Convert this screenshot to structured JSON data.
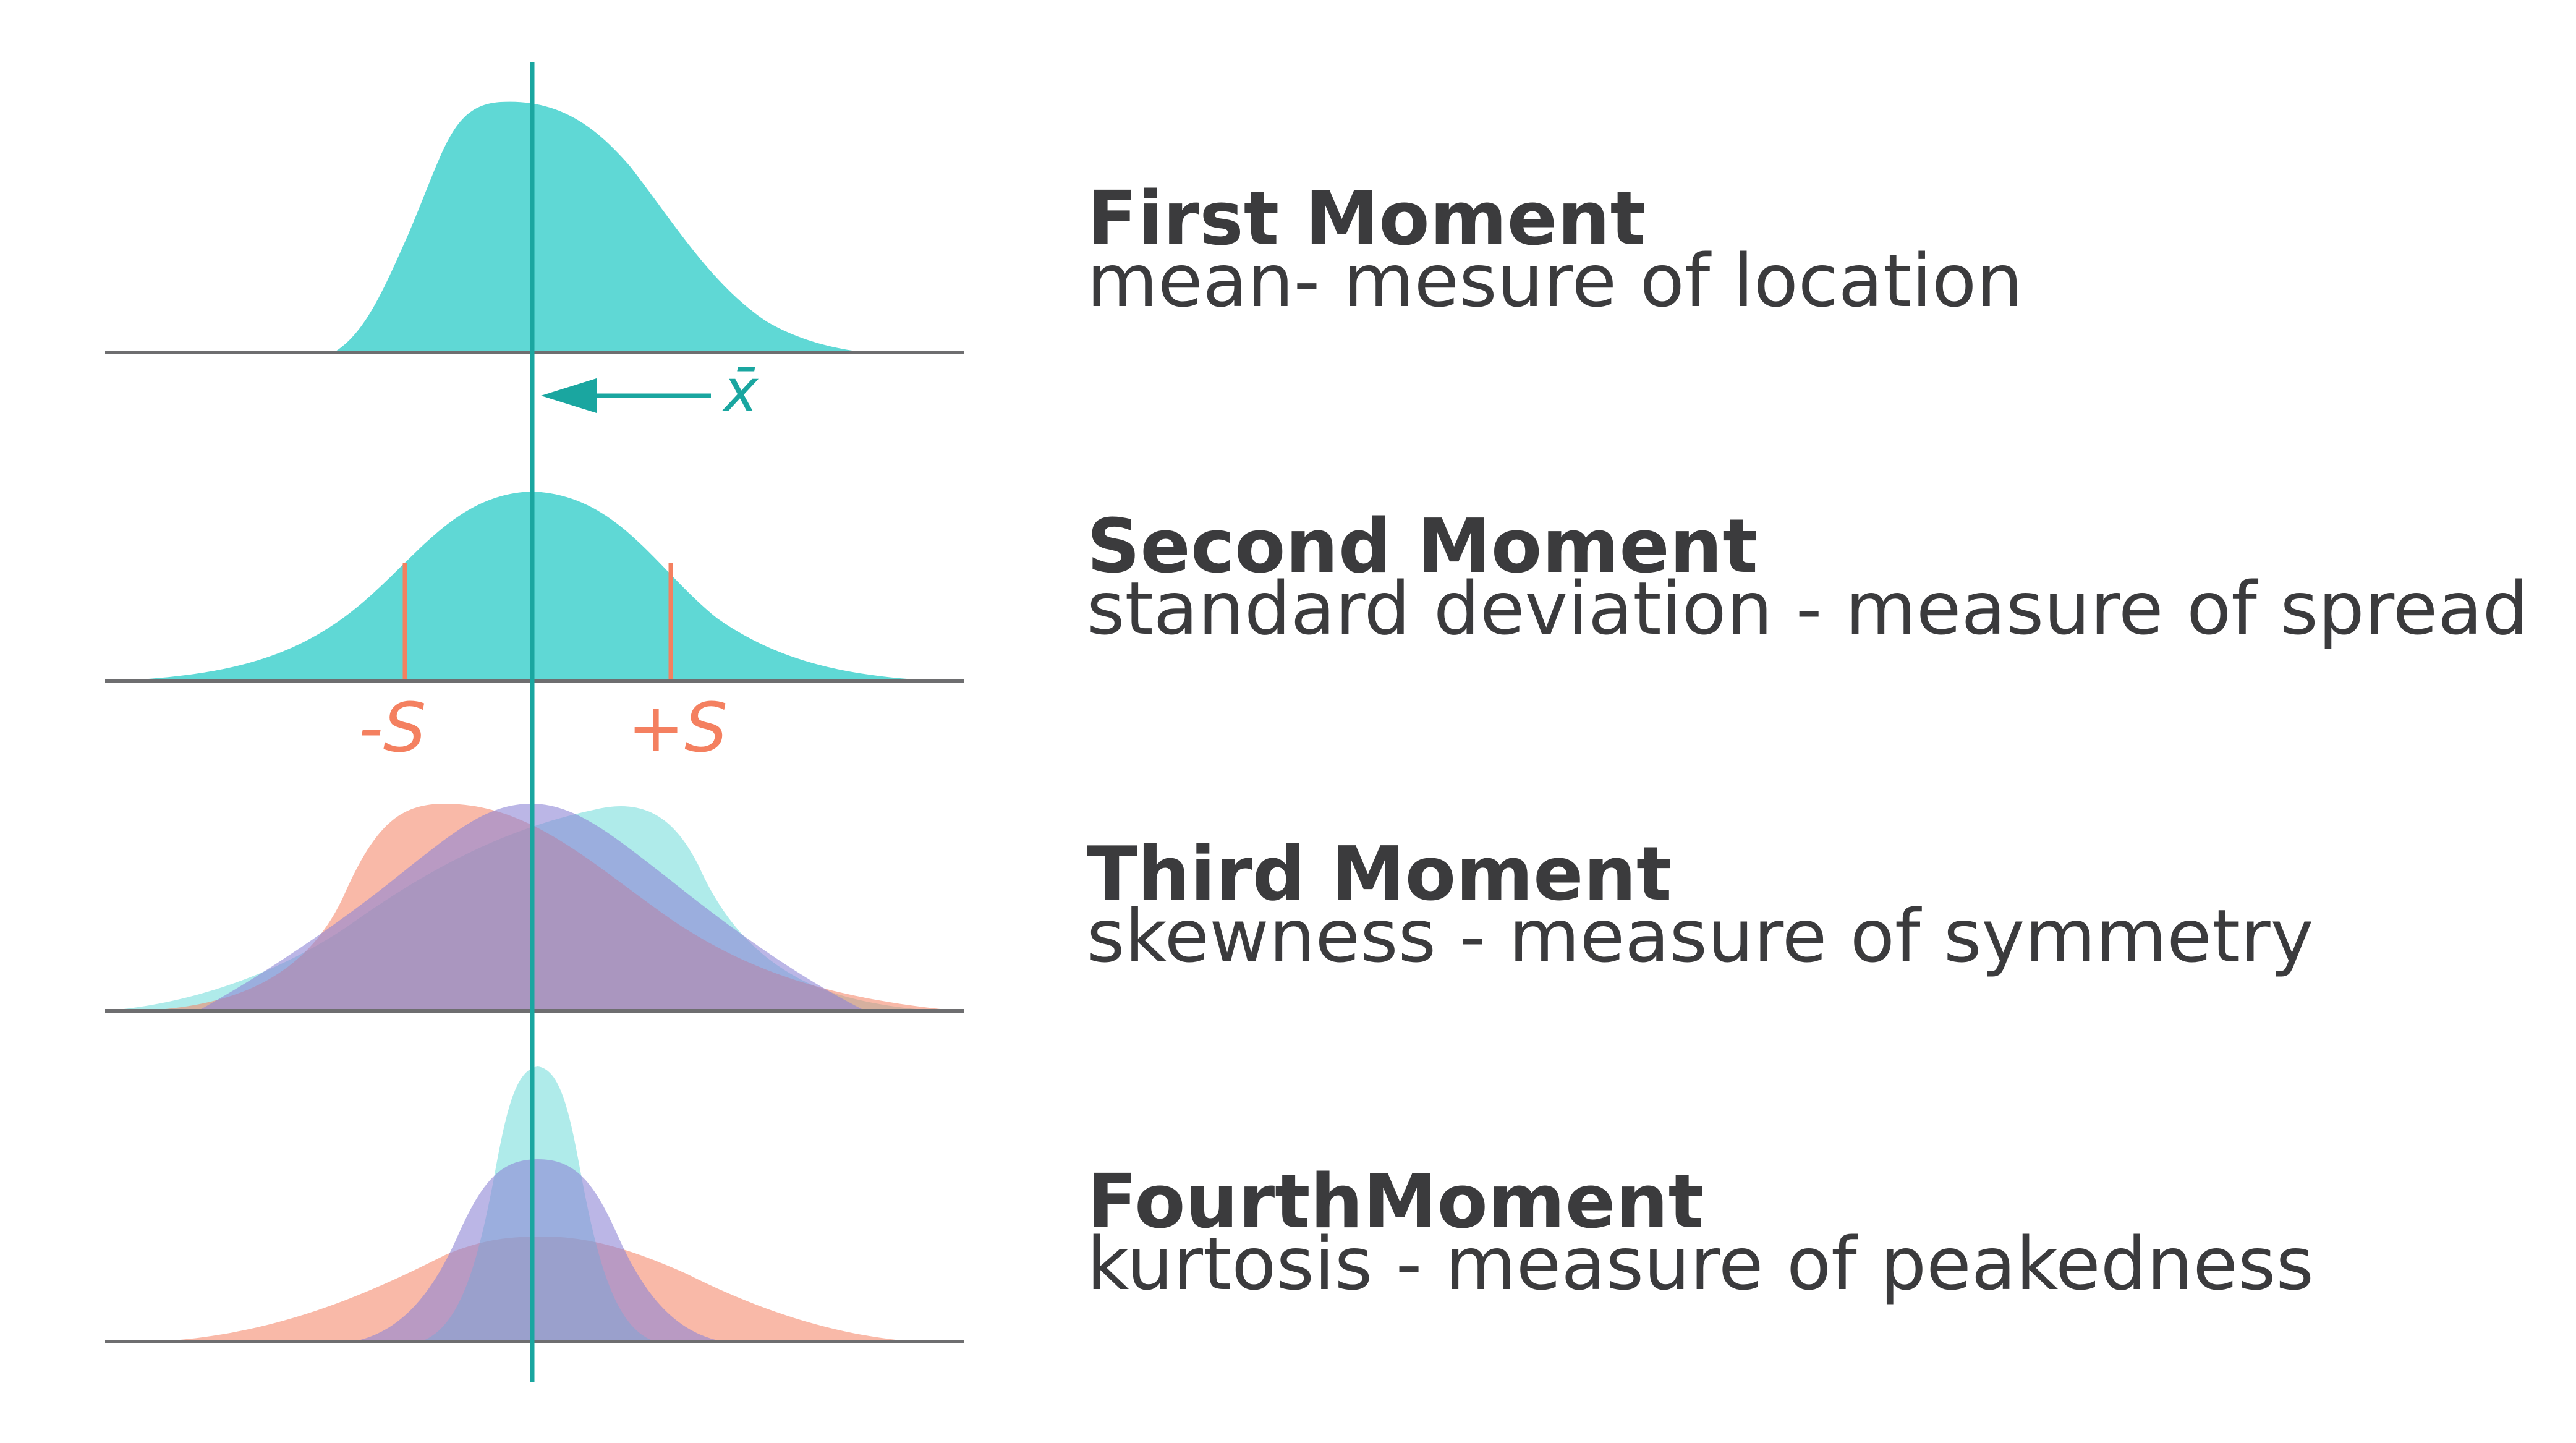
{
  "colors": {
    "teal": "#5fd8d5",
    "teal_line": "#1aa6a0",
    "orange": "#f48060",
    "purple": "#8e86d6",
    "axis": "#6e6e70",
    "text": "#3b3b3d"
  },
  "panels": [
    {
      "title": "First Moment",
      "description": "mean- mesure of location"
    },
    {
      "title": "Second Moment",
      "description": "standard deviation - measure of spread"
    },
    {
      "title": "Third Moment",
      "description": "skewness - measure of symmetry"
    },
    {
      "title": "FourthMoment",
      "description": "kurtosis - measure of peakedness"
    }
  ],
  "mean_label": "x̄",
  "sd_labels": {
    "minus": "-S",
    "plus": "+S"
  },
  "icons": {
    "arrow": "left-arrow-icon"
  }
}
